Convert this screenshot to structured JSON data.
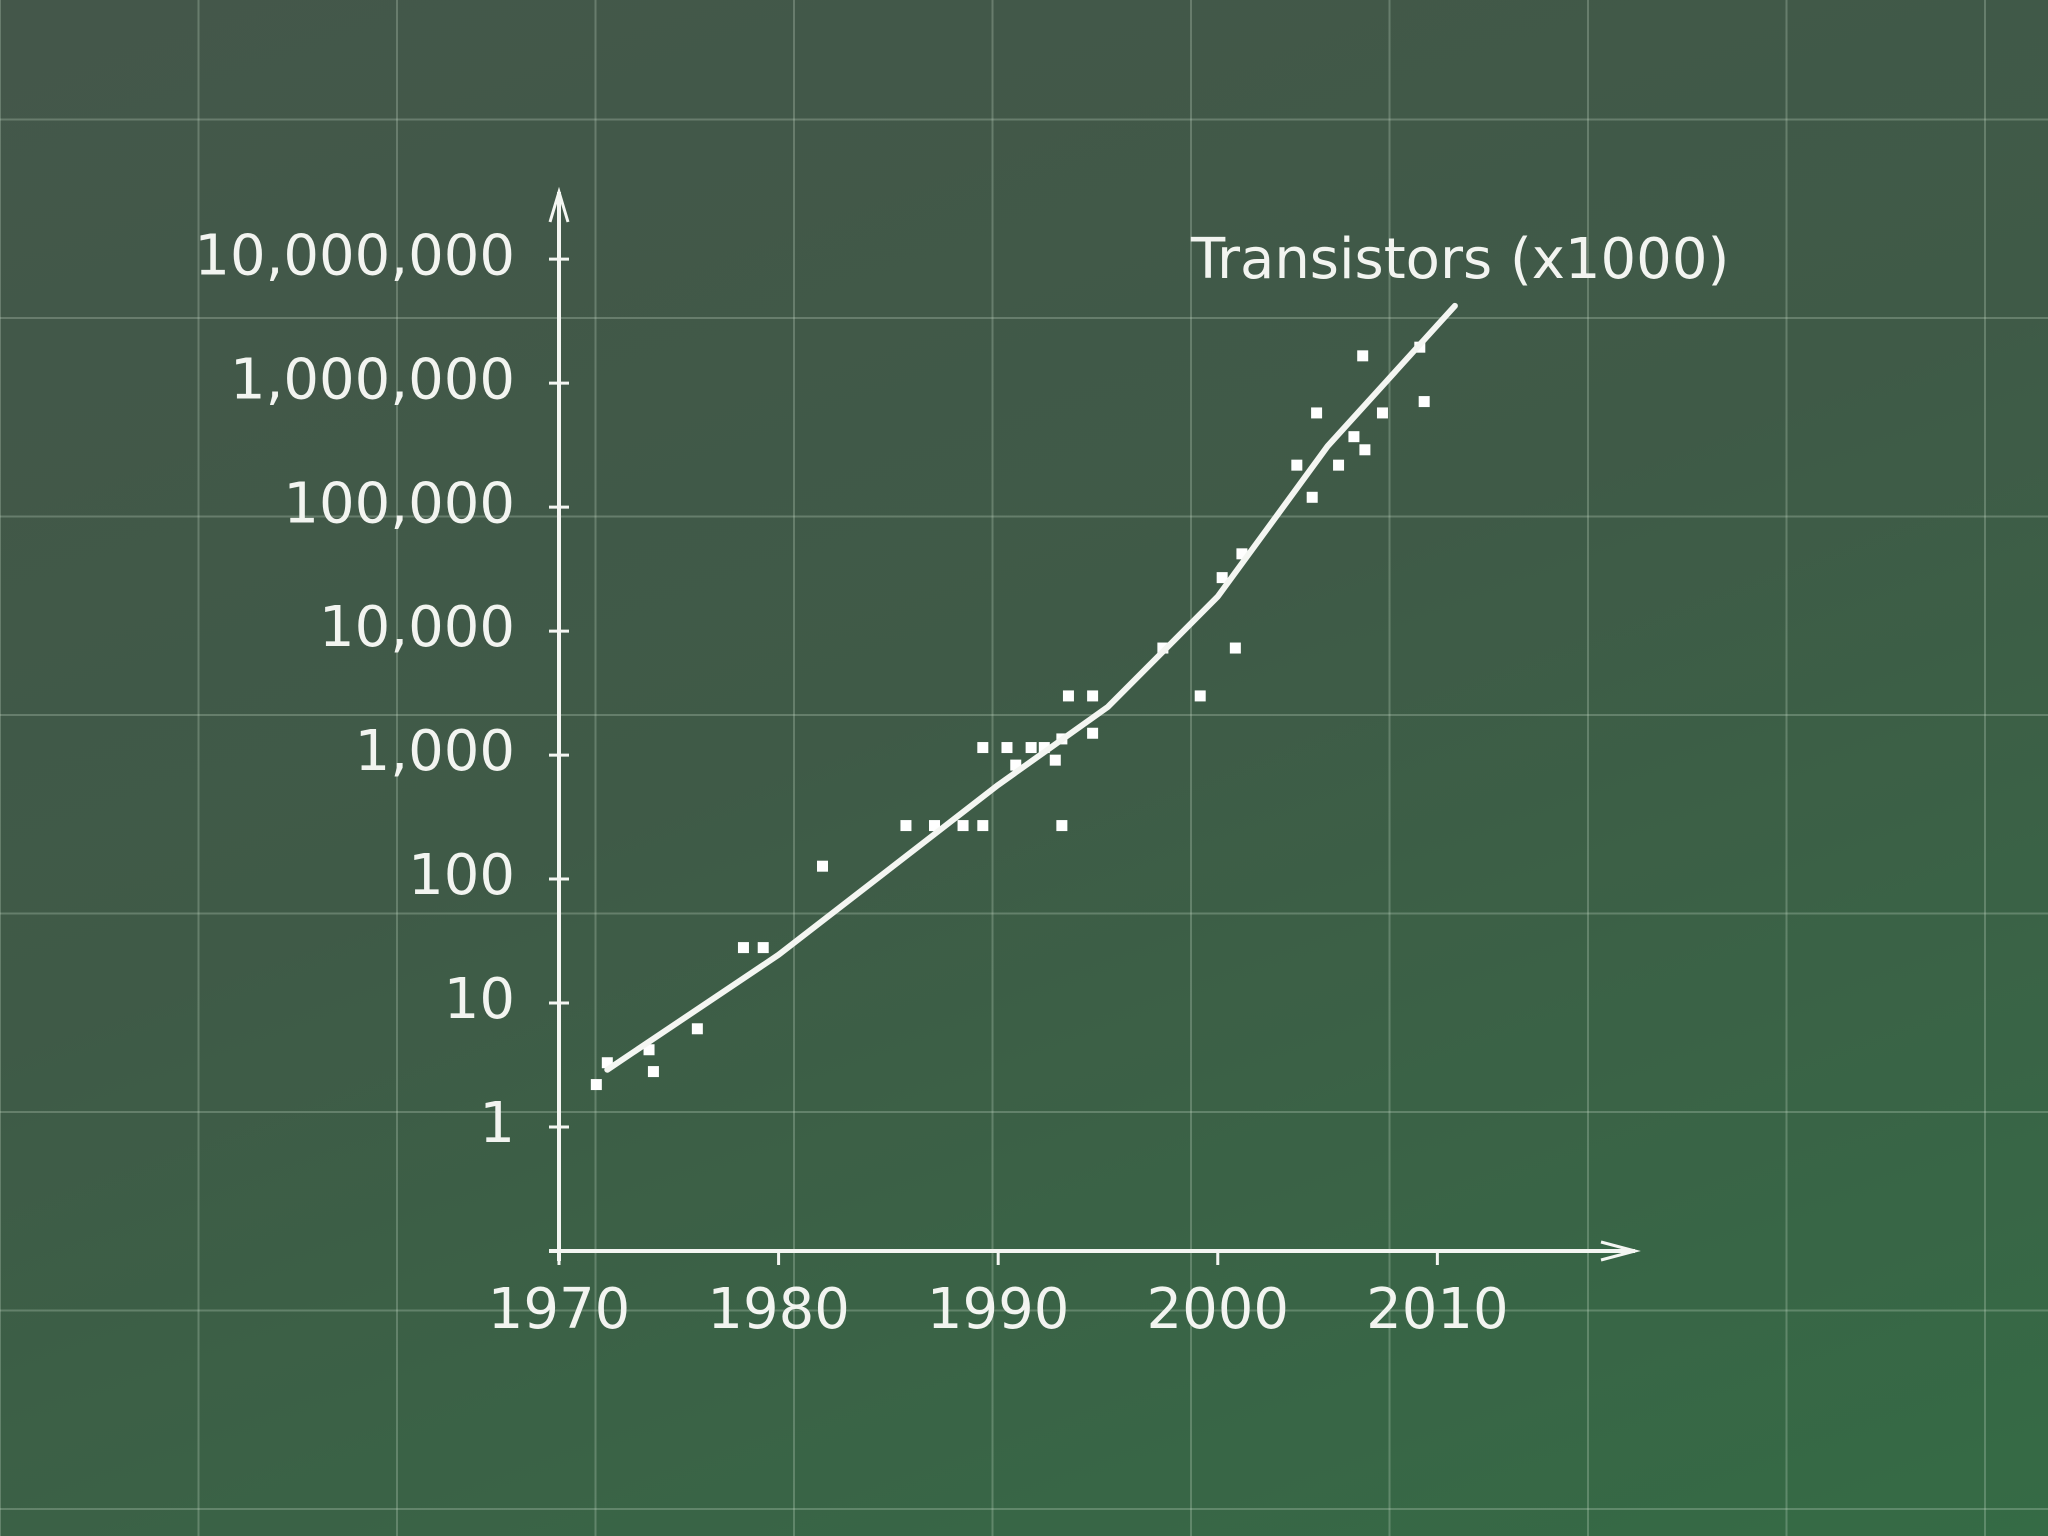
{
  "chart_data": {
    "type": "scatter",
    "y_label": "Transistors (x1000)",
    "log_y": true,
    "grid": false,
    "color": "#ffffff",
    "xlim": [
      1970,
      2019
    ],
    "ylim": [
      0.1,
      30000000
    ],
    "xticks": [
      1970,
      1980,
      1990,
      2000,
      2010
    ],
    "yticks": [
      1,
      10,
      100,
      {
        "value": 1000,
        "label": "1,000"
      },
      {
        "value": 10000,
        "label": "10,000"
      },
      {
        "value": 100000,
        "label": "100,000"
      },
      {
        "value": 1000000,
        "label": "1,000,000"
      },
      {
        "value": 10000000,
        "label": "10,000,000"
      }
    ],
    "x": [
      1971.7,
      1972.2,
      1974.1,
      1974.3,
      1976.3,
      1978.4,
      1979.3,
      1982.0,
      1985.8,
      1987.1,
      1988.4,
      1989.3,
      1989.3,
      1990.4,
      1990.8,
      1991.5,
      1992.1,
      1992.6,
      1992.9,
      1992.9,
      1993.2,
      1994.3,
      1994.3,
      1997.5,
      1999.2,
      2000.2,
      2000.8,
      2001.1,
      2003.6,
      2004.3,
      2004.5,
      2005.5,
      2006.2,
      2006.6,
      2006.7,
      2007.5,
      2009.2,
      2009.4
    ],
    "values": [
      2.2,
      3.3,
      4.2,
      2.8,
      6.2,
      28,
      28,
      127,
      270,
      270,
      270,
      270,
      1150,
      1150,
      830,
      1150,
      1150,
      910,
      270,
      1350,
      3000,
      3000,
      1500,
      7300,
      3000,
      27000,
      7300,
      42000,
      218000,
      120000,
      575000,
      218000,
      370000,
      1660000,
      290000,
      575000,
      1950000,
      710000
    ],
    "trend": {
      "x": [
        1972.2,
        1980,
        1990,
        1995,
        2000,
        2005,
        2010.8
      ],
      "values": [
        2.9,
        24.5,
        575,
        2450,
        19000,
        310000,
        4200000
      ]
    }
  }
}
